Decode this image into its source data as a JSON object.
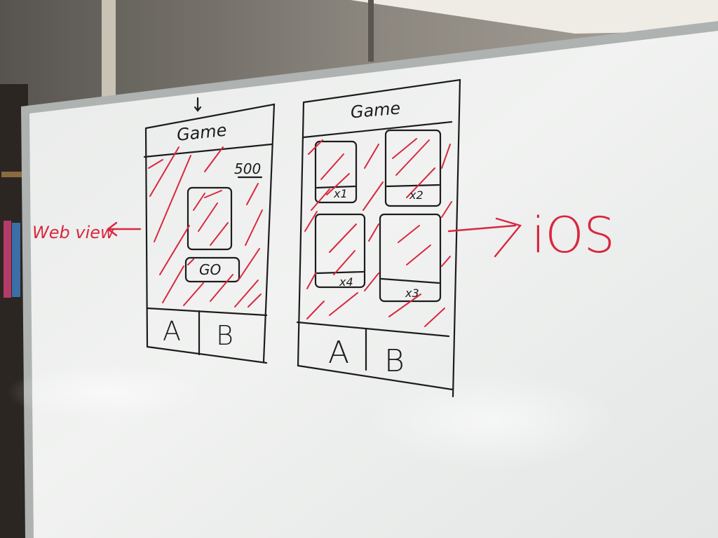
{
  "web_mockup": {
    "title": "Game",
    "score": "500",
    "go_label": "GO",
    "tabs": [
      "A",
      "B"
    ]
  },
  "ios_mockup": {
    "title": "Game",
    "tiles": [
      "x1",
      "x2",
      "x4",
      "x3"
    ],
    "tabs": [
      "A",
      "B"
    ]
  },
  "annotations": {
    "left": "Web view",
    "right": "iOS"
  },
  "colors": {
    "marker_black": "#1c1c1c",
    "marker_red": "#d8283f",
    "board": "#eceeed",
    "frame": "#b9bcbb"
  }
}
